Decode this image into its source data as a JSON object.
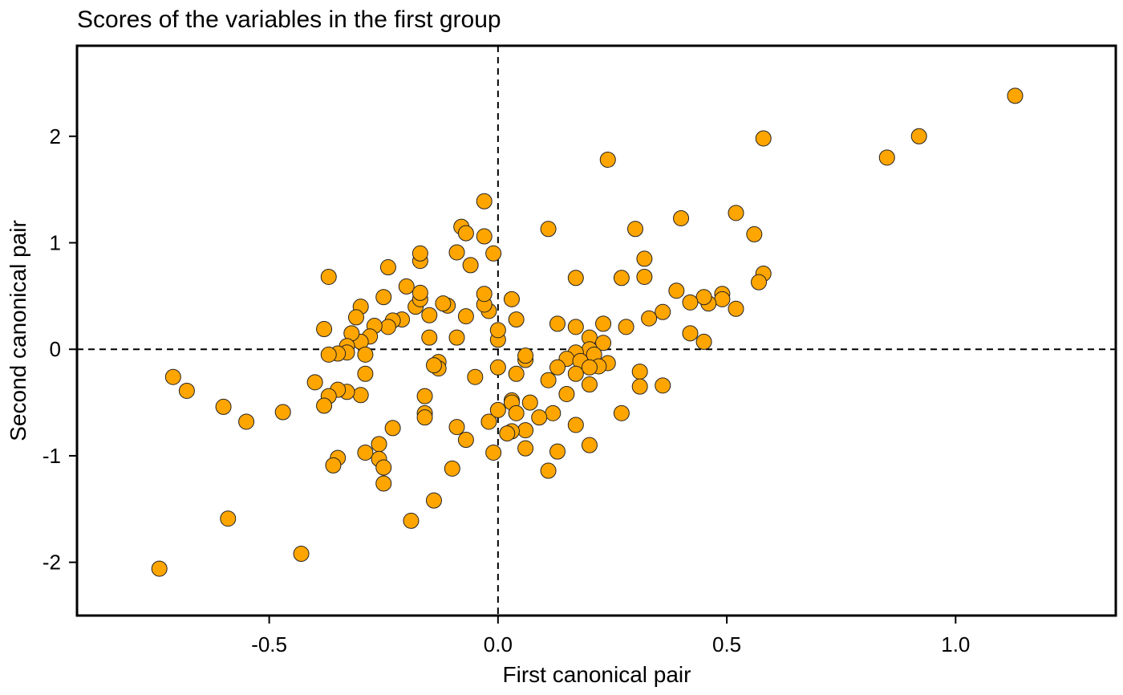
{
  "chart_data": {
    "type": "scatter",
    "title": "Scores of the variables in the first group",
    "xlabel": "First canonical pair",
    "ylabel": "Second canonical pair",
    "xlim": [
      -0.92,
      1.35
    ],
    "ylim": [
      -2.5,
      2.85
    ],
    "xticks": [
      -0.5,
      0.0,
      0.5,
      1.0
    ],
    "xtick_labels": [
      "-0.5",
      "0.0",
      "0.5",
      "1.0"
    ],
    "yticks": [
      -2,
      -1,
      0,
      1,
      2
    ],
    "ytick_labels": [
      "-2",
      "-1",
      "0",
      "1",
      "2"
    ],
    "reference_lines": {
      "x": 0,
      "y": 0,
      "style": "dashed"
    },
    "grid": false,
    "marker_color": "#FFA500",
    "points": [
      [
        1.13,
        2.38
      ],
      [
        0.92,
        2.0
      ],
      [
        0.85,
        1.8
      ],
      [
        0.58,
        1.98
      ],
      [
        0.24,
        1.78
      ],
      [
        0.52,
        1.28
      ],
      [
        0.4,
        1.23
      ],
      [
        0.56,
        1.08
      ],
      [
        0.3,
        1.13
      ],
      [
        0.11,
        1.13
      ],
      [
        0.58,
        0.71
      ],
      [
        0.57,
        0.63
      ],
      [
        0.32,
        0.85
      ],
      [
        0.32,
        0.68
      ],
      [
        0.27,
        0.67
      ],
      [
        0.17,
        0.67
      ],
      [
        0.39,
        0.55
      ],
      [
        0.49,
        0.52
      ],
      [
        0.49,
        0.47
      ],
      [
        0.46,
        0.43
      ],
      [
        0.45,
        0.49
      ],
      [
        0.52,
        0.38
      ],
      [
        0.42,
        0.44
      ],
      [
        0.36,
        0.35
      ],
      [
        0.33,
        0.29
      ],
      [
        0.42,
        0.15
      ],
      [
        0.45,
        0.07
      ],
      [
        0.28,
        0.21
      ],
      [
        0.23,
        0.24
      ],
      [
        0.13,
        0.24
      ],
      [
        0.17,
        0.21
      ],
      [
        0.2,
        0.11
      ],
      [
        0.23,
        0.06
      ],
      [
        0.2,
        0.0
      ],
      [
        0.21,
        -0.05
      ],
      [
        0.17,
        -0.03
      ],
      [
        0.15,
        -0.09
      ],
      [
        0.18,
        -0.11
      ],
      [
        0.24,
        -0.13
      ],
      [
        0.22,
        -0.16
      ],
      [
        0.2,
        -0.17
      ],
      [
        0.17,
        -0.23
      ],
      [
        0.13,
        -0.17
      ],
      [
        0.11,
        -0.29
      ],
      [
        0.2,
        -0.33
      ],
      [
        0.31,
        -0.21
      ],
      [
        0.31,
        -0.35
      ],
      [
        0.36,
        -0.34
      ],
      [
        0.15,
        -0.42
      ],
      [
        0.12,
        -0.6
      ],
      [
        0.27,
        -0.6
      ],
      [
        0.17,
        -0.71
      ],
      [
        0.2,
        -0.9
      ],
      [
        0.13,
        -0.96
      ],
      [
        0.11,
        -1.14
      ],
      [
        0.09,
        -0.64
      ],
      [
        0.07,
        -0.5
      ],
      [
        0.06,
        -0.1
      ],
      [
        0.06,
        -0.06
      ],
      [
        0.04,
        -0.23
      ],
      [
        0.0,
        -0.17
      ],
      [
        0.03,
        -0.48
      ],
      [
        0.03,
        -0.5
      ],
      [
        0.04,
        -0.6
      ],
      [
        0.06,
        -0.76
      ],
      [
        0.06,
        -0.93
      ],
      [
        0.03,
        -0.77
      ],
      [
        0.02,
        -0.79
      ],
      [
        -0.02,
        -0.68
      ],
      [
        0.0,
        -0.57
      ],
      [
        -0.01,
        -0.97
      ],
      [
        0.0,
        0.09
      ],
      [
        0.0,
        0.18
      ],
      [
        0.03,
        0.47
      ],
      [
        0.04,
        0.28
      ],
      [
        -0.02,
        0.36
      ],
      [
        -0.03,
        0.42
      ],
      [
        -0.03,
        0.52
      ],
      [
        -0.01,
        0.9
      ],
      [
        -0.03,
        1.06
      ],
      [
        -0.03,
        1.39
      ],
      [
        -0.06,
        0.79
      ],
      [
        -0.08,
        1.15
      ],
      [
        -0.07,
        1.09
      ],
      [
        -0.09,
        0.91
      ],
      [
        -0.07,
        0.31
      ],
      [
        -0.09,
        0.11
      ],
      [
        -0.11,
        0.41
      ],
      [
        -0.12,
        0.43
      ],
      [
        -0.13,
        -0.12
      ],
      [
        -0.13,
        -0.18
      ],
      [
        -0.14,
        -0.15
      ],
      [
        -0.09,
        -0.73
      ],
      [
        -0.07,
        -0.85
      ],
      [
        -0.1,
        -1.12
      ],
      [
        -0.05,
        -0.26
      ],
      [
        -0.15,
        0.11
      ],
      [
        -0.15,
        0.32
      ],
      [
        -0.16,
        -0.44
      ],
      [
        -0.16,
        -0.6
      ],
      [
        -0.16,
        -0.64
      ],
      [
        -0.14,
        -1.42
      ],
      [
        -0.19,
        -1.61
      ],
      [
        -0.18,
        0.4
      ],
      [
        -0.17,
        0.47
      ],
      [
        -0.17,
        0.53
      ],
      [
        -0.17,
        0.83
      ],
      [
        -0.17,
        0.9
      ],
      [
        -0.2,
        0.59
      ],
      [
        -0.21,
        0.28
      ],
      [
        -0.23,
        0.27
      ],
      [
        -0.24,
        0.21
      ],
      [
        -0.24,
        0.77
      ],
      [
        -0.25,
        0.49
      ],
      [
        -0.27,
        0.22
      ],
      [
        -0.28,
        0.12
      ],
      [
        -0.3,
        0.07
      ],
      [
        -0.3,
        0.4
      ],
      [
        -0.31,
        0.3
      ],
      [
        -0.32,
        0.15
      ],
      [
        -0.33,
        0.03
      ],
      [
        -0.33,
        -0.03
      ],
      [
        -0.35,
        -0.04
      ],
      [
        -0.37,
        -0.05
      ],
      [
        -0.38,
        0.19
      ],
      [
        -0.37,
        0.68
      ],
      [
        -0.29,
        -0.05
      ],
      [
        -0.29,
        -0.23
      ],
      [
        -0.3,
        -0.43
      ],
      [
        -0.33,
        -0.4
      ],
      [
        -0.35,
        -0.38
      ],
      [
        -0.37,
        -0.44
      ],
      [
        -0.38,
        -0.53
      ],
      [
        -0.4,
        -0.31
      ],
      [
        -0.35,
        -1.02
      ],
      [
        -0.36,
        -1.09
      ],
      [
        -0.29,
        -0.97
      ],
      [
        -0.26,
        -0.89
      ],
      [
        -0.26,
        -1.03
      ],
      [
        -0.25,
        -1.11
      ],
      [
        -0.25,
        -1.26
      ],
      [
        -0.23,
        -0.74
      ],
      [
        -0.43,
        -1.92
      ],
      [
        -0.47,
        -0.59
      ],
      [
        -0.55,
        -0.68
      ],
      [
        -0.6,
        -0.54
      ],
      [
        -0.59,
        -1.59
      ],
      [
        -0.68,
        -0.39
      ],
      [
        -0.71,
        -0.26
      ],
      [
        -0.74,
        -2.06
      ]
    ]
  }
}
